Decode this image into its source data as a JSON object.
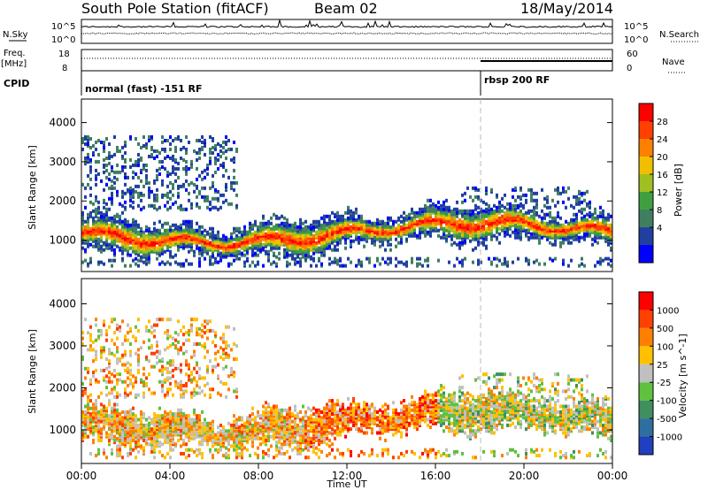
{
  "header": {
    "station": "South Pole Station (fitACF)",
    "beam": "Beam 02",
    "date": "18/May/2014"
  },
  "top_panels": {
    "nsky_label": "N.Sky",
    "nsearch_label": "N.Search",
    "noise_ticks_left": [
      "10^5",
      "10^0"
    ],
    "noise_ticks_right": [
      "10^5",
      "10^0"
    ],
    "freq_label": "Freq.",
    "freq_unit": "[MHz]",
    "freq_ticks": [
      "18",
      "8"
    ],
    "nave_label": "Nave",
    "nave_ticks": [
      "60",
      "0"
    ],
    "cpid_label": "CPID",
    "cpid_segments": [
      {
        "label": "normal (fast) -151 RF",
        "start_hour": 0
      },
      {
        "label": "rbsp 200 RF",
        "start_hour": 18
      }
    ]
  },
  "x_axis": {
    "label": "Time UT",
    "ticks": [
      "00:00",
      "04:00",
      "08:00",
      "12:00",
      "16:00",
      "20:00",
      "00:00"
    ]
  },
  "chart_data": [
    {
      "type": "heatmap",
      "title": "",
      "ylabel": "Slant Range [km]",
      "xlabel": "",
      "xlim": [
        0,
        24
      ],
      "ylim": [
        200,
        4600
      ],
      "yticks": [
        1000,
        2000,
        3000,
        4000
      ],
      "colorbar": {
        "label": "Power [dB]",
        "ticks": [
          "28",
          "24",
          "20",
          "16",
          "12",
          "8",
          "4"
        ],
        "colors": [
          "#0000ff",
          "#2040a0",
          "#3f7f5f",
          "#40a040",
          "#a0c020",
          "#f0c000",
          "#ff8000",
          "#ff4000",
          "#ff0000"
        ]
      },
      "description_bands": [
        {
          "hour_start": 0,
          "hour_end": 24,
          "range_low": 700,
          "range_high": 1500,
          "dominant": "red"
        }
      ]
    },
    {
      "type": "heatmap",
      "title": "",
      "ylabel": "Slant Range [km]",
      "xlabel": "Time UT",
      "xlim": [
        0,
        24
      ],
      "ylim": [
        200,
        4600
      ],
      "yticks": [
        1000,
        2000,
        3000,
        4000
      ],
      "colorbar": {
        "label": "Velocity [m s^-1]",
        "ticks": [
          "1000",
          "500",
          "100",
          "25",
          "-25",
          "-100",
          "-500",
          "-1000"
        ],
        "colors": [
          "#2040c0",
          "#2f6fa0",
          "#3f8f5f",
          "#60c040",
          "#c0c0c0",
          "#ffc000",
          "#ff8000",
          "#ff4000",
          "#ff0000"
        ]
      }
    }
  ]
}
